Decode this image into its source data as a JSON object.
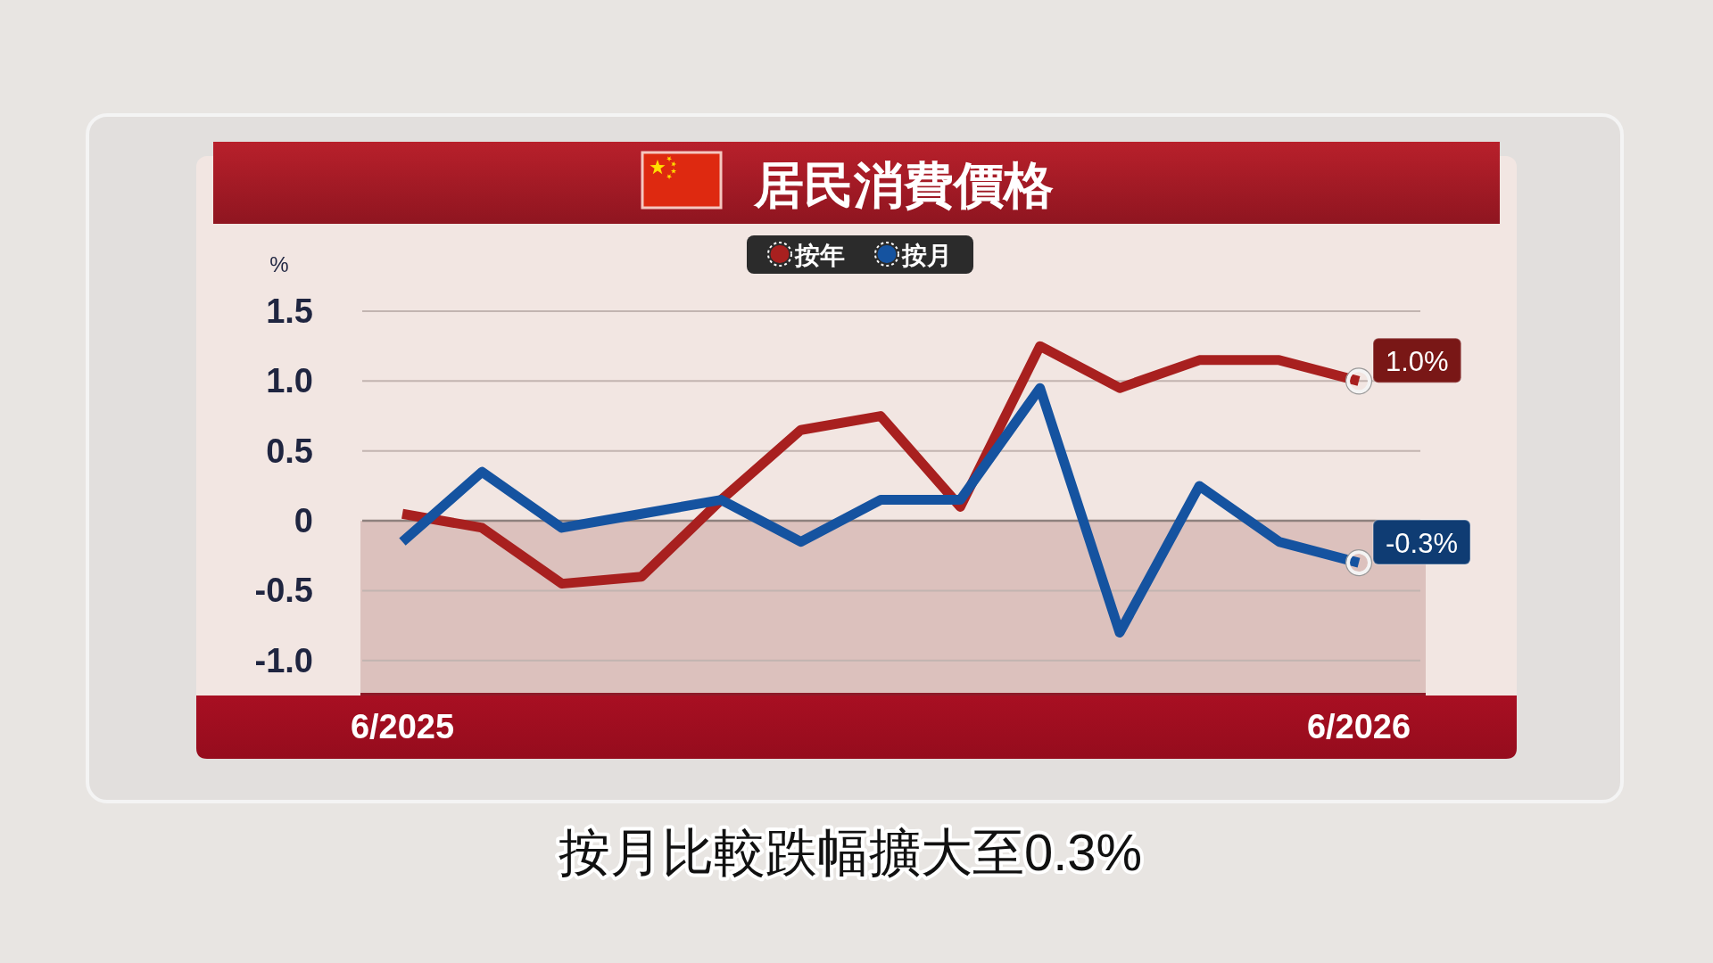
{
  "chart_data": {
    "type": "line",
    "title": "居民消費價格",
    "ylabel": "%",
    "categories": [
      "6/2025",
      null,
      null,
      null,
      null,
      null,
      null,
      null,
      null,
      null,
      null,
      null,
      "6/2026"
    ],
    "series": [
      {
        "name": "按年",
        "color": "#a8201f",
        "values": [
          0.05,
          -0.05,
          -0.45,
          -0.4,
          0.15,
          0.65,
          0.75,
          0.1,
          1.25,
          0.95,
          1.15,
          1.15,
          1.0
        ],
        "value_labels": [
          null,
          null,
          null,
          null,
          null,
          null,
          null,
          null,
          null,
          null,
          null,
          null,
          "1.0%"
        ]
      },
      {
        "name": "按月",
        "color": "#1553a0",
        "values": [
          -0.15,
          0.35,
          -0.05,
          0.05,
          0.15,
          -0.15,
          0.15,
          0.15,
          0.95,
          -0.8,
          0.25,
          -0.15,
          -0.3
        ],
        "value_labels": [
          null,
          null,
          null,
          null,
          null,
          null,
          null,
          null,
          null,
          null,
          null,
          null,
          "-0.3%"
        ]
      }
    ],
    "ylim": [
      -1.25,
      1.5
    ],
    "yticks": [
      1.5,
      {
        "value": 1,
        "label": "1.0"
      },
      0.5,
      0,
      -0.5,
      {
        "value": -1,
        "label": "-1.0"
      }
    ],
    "grid": "y",
    "legend": "top",
    "bands": [
      {
        "axis": "y",
        "from": -1.25,
        "to": 0,
        "color": "#dcc1bd"
      }
    ],
    "ref_lines": [
      {
        "axis": "y",
        "value": 0,
        "color": "#8e817e"
      }
    ],
    "annotations": [
      "按月比較跌幅擴大至0.3%"
    ]
  }
}
